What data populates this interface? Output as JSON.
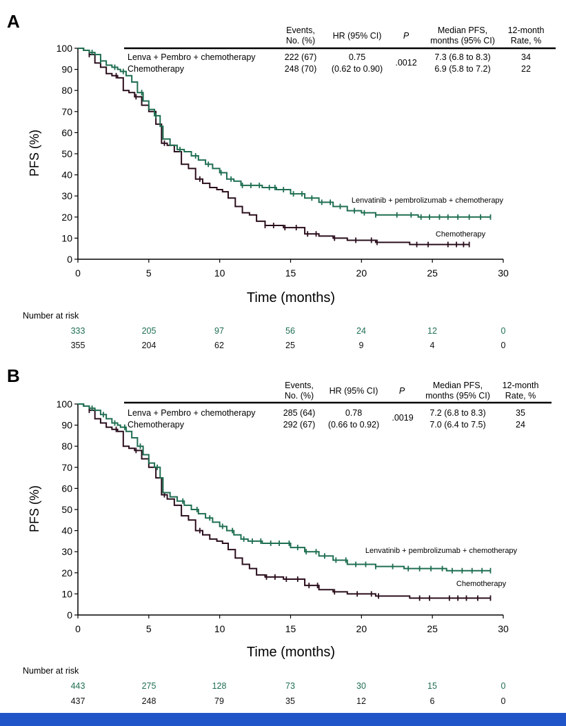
{
  "figure": {
    "accent_color": "#1f55c8",
    "colors": {
      "lenva": "#1e6e50",
      "chemo": "#2a0d1c"
    }
  },
  "chart_data": [
    {
      "panel": "A",
      "type": "line",
      "subtype": "kaplan-meier",
      "xlabel": "Time (months)",
      "ylabel": "PFS (%)",
      "xlim": [
        0,
        30
      ],
      "ylim": [
        0,
        100
      ],
      "xticks": [
        0,
        5,
        10,
        15,
        20,
        25,
        30
      ],
      "yticks": [
        0,
        10,
        20,
        30,
        40,
        50,
        60,
        70,
        80,
        90,
        100
      ],
      "table": {
        "headers": [
          {
            "lines": [
              "Events,",
              "No. (%)"
            ]
          },
          {
            "lines": [
              "HR (95% CI)"
            ]
          },
          {
            "lines": [
              "P"
            ],
            "italic": true
          },
          {
            "lines": [
              "Median  PFS,",
              "months (95% CI)"
            ]
          },
          {
            "lines": [
              "12-month",
              "Rate, %"
            ]
          }
        ],
        "rows": [
          {
            "name": "Lenva + Pembro + chemotherapy",
            "events": "222 (67)",
            "hr": "0.75",
            "p": ".0012",
            "median": "7.3 (6.8 to 8.3)",
            "rate": "34"
          },
          {
            "name": "Chemotherapy",
            "events": "248 (70)",
            "hr": "(0.62 to 0.90)",
            "p": "",
            "median": "6.9 (5.8 to 7.2)",
            "rate": "22"
          }
        ]
      },
      "series": [
        {
          "name": "Lenvatinib + pembrolizumab + chemotherapy",
          "label": "Lenvatinib + pembrolizumab + chemotherapy",
          "color": "#1e6e50",
          "x": [
            0,
            0.4,
            0.8,
            1.2,
            1.6,
            2,
            2.4,
            2.8,
            3,
            3.4,
            3.8,
            4.2,
            4.6,
            5,
            5.4,
            5.8,
            6,
            6.5,
            7,
            7.5,
            8,
            8.5,
            9,
            9.5,
            10,
            10.5,
            11,
            11.5,
            12,
            13,
            14,
            15,
            16,
            17,
            18,
            19,
            20,
            21,
            22,
            23,
            24,
            25,
            26,
            27,
            28,
            29.1
          ],
          "y": [
            100,
            99,
            98,
            97,
            94,
            92,
            91,
            90,
            89,
            87,
            84,
            79,
            75,
            71,
            68,
            63,
            57,
            54,
            52,
            51,
            49,
            47,
            45,
            43,
            41,
            38,
            37,
            35,
            35,
            34,
            33,
            31,
            29,
            27,
            25,
            23,
            22,
            21,
            21,
            21,
            20,
            20,
            20,
            20,
            20,
            20
          ],
          "censor_x": [
            1,
            1.6,
            2.6,
            3.2,
            4.5,
            5.5,
            7.2,
            8.3,
            9.2,
            10.1,
            10.8,
            11.6,
            12.2,
            12.8,
            13.5,
            13.9,
            14.5,
            15.2,
            15.8,
            16.5,
            17.2,
            17.8,
            18.5,
            19.5,
            20.2,
            21,
            22.5,
            23.5,
            24.2,
            24.8,
            25.5,
            26.1,
            26.8,
            27.6,
            28.4,
            29.1
          ]
        },
        {
          "name": "Chemotherapy",
          "label": "Chemotherapy",
          "color": "#2a0d1c",
          "x": [
            0,
            0.4,
            0.8,
            1.2,
            1.6,
            2,
            2.4,
            2.8,
            3.2,
            3.6,
            4,
            4.5,
            5,
            5.5,
            5.9,
            6.3,
            6.8,
            7.3,
            7.8,
            8.3,
            8.8,
            9.3,
            9.8,
            10.2,
            10.6,
            11.1,
            11.6,
            12.1,
            12.6,
            13.2,
            14.5,
            16,
            17,
            18,
            19,
            20,
            21,
            22,
            23,
            23.4,
            24.5,
            25.5,
            26.5,
            27.6
          ],
          "y": [
            100,
            99,
            97,
            93,
            91,
            88,
            87,
            86,
            80,
            79,
            77,
            73,
            70,
            64,
            55,
            54,
            51,
            45,
            43,
            38,
            36,
            34,
            33,
            32,
            29,
            25,
            22,
            21,
            18,
            16,
            15,
            12,
            11,
            10,
            9,
            9,
            8,
            8,
            8,
            7,
            7,
            7,
            7,
            7
          ],
          "censor_x": [
            0.8,
            2.7,
            4.1,
            6.1,
            8.6,
            13.2,
            13.8,
            14.6,
            15.4,
            16.2,
            16.8,
            18.1,
            19.6,
            20.7,
            21.1,
            23.9,
            24.7,
            26.1,
            26.7,
            27.2,
            27.6
          ]
        }
      ],
      "risk_table": {
        "title": "Number at risk",
        "times": [
          0,
          5,
          10,
          15,
          20,
          25,
          30
        ],
        "rows": [
          {
            "series": "Lenvatinib + pembrolizumab + chemotherapy",
            "values": [
              "333",
              "205",
              "97",
              "56",
              "24",
              "12",
              "0"
            ]
          },
          {
            "series": "Chemotherapy",
            "values": [
              "355",
              "204",
              "62",
              "25",
              "9",
              "4",
              "0"
            ]
          }
        ]
      }
    },
    {
      "panel": "B",
      "type": "line",
      "subtype": "kaplan-meier",
      "xlabel": "Time (months)",
      "ylabel": "PFS (%)",
      "xlim": [
        0,
        30
      ],
      "ylim": [
        0,
        100
      ],
      "xticks": [
        0,
        5,
        10,
        15,
        20,
        25,
        30
      ],
      "yticks": [
        0,
        10,
        20,
        30,
        40,
        50,
        60,
        70,
        80,
        90,
        100
      ],
      "table": {
        "headers": [
          {
            "lines": [
              "Events,",
              "No. (%)"
            ]
          },
          {
            "lines": [
              "HR (95% CI)"
            ]
          },
          {
            "lines": [
              "P"
            ],
            "italic": true
          },
          {
            "lines": [
              "Median  PFS,",
              "months (95% CI)"
            ]
          },
          {
            "lines": [
              "12-month",
              "Rate, %"
            ]
          }
        ],
        "rows": [
          {
            "name": "Lenva + Pembro + chemotherapy",
            "events": "285 (64)",
            "hr": "0.78",
            "p": ".0019",
            "median": "7.2 (6.8 to 8.3)",
            "rate": "35"
          },
          {
            "name": "Chemotherapy",
            "events": "292 (67)",
            "hr": "(0.66 to 0.92)",
            "p": "",
            "median": "7.0 (6.4 to 7.5)",
            "rate": "24"
          }
        ]
      },
      "series": [
        {
          "name": "Lenvatinib + pembrolizumab + chemotherapy",
          "label": "Lenvatinib + pembrolizumab + chemotherapy",
          "color": "#1e6e50",
          "x": [
            0,
            0.4,
            0.8,
            1.2,
            1.6,
            2,
            2.4,
            2.8,
            3,
            3.4,
            3.8,
            4.2,
            4.6,
            5,
            5.4,
            5.8,
            6,
            6.5,
            7,
            7.5,
            8,
            8.5,
            9,
            9.5,
            10,
            10.5,
            11,
            11.5,
            12,
            13,
            14,
            15,
            16,
            17,
            18,
            19,
            20,
            21,
            22,
            23,
            24,
            25,
            26,
            27,
            28,
            29.1
          ],
          "y": [
            100,
            99,
            98,
            97,
            95,
            93,
            91,
            90,
            89,
            87,
            84,
            80,
            76,
            72,
            70,
            65,
            58,
            56,
            54,
            52,
            50,
            48,
            46,
            44,
            42,
            40,
            38,
            36,
            35,
            34,
            34,
            32,
            30,
            28,
            26,
            24,
            24,
            23,
            23,
            22,
            22,
            22,
            21,
            21,
            21,
            21
          ],
          "censor_x": [
            1,
            1.8,
            2.6,
            3.3,
            4.4,
            5.6,
            7.4,
            8.4,
            9.3,
            10.2,
            10.9,
            11.7,
            12.3,
            12.9,
            13.6,
            14.2,
            14.9,
            15.5,
            16.1,
            16.8,
            17.4,
            18.2,
            18.9,
            19.6,
            20.3,
            21,
            22.2,
            23.3,
            24.1,
            24.9,
            25.7,
            26.4,
            27.1,
            27.8,
            28.5,
            29.1
          ]
        },
        {
          "name": "Chemotherapy",
          "label": "Chemotherapy",
          "color": "#2a0d1c",
          "x": [
            0,
            0.4,
            0.8,
            1.2,
            1.6,
            2,
            2.4,
            2.8,
            3.2,
            3.6,
            4,
            4.5,
            5,
            5.5,
            5.9,
            6.3,
            6.8,
            7.3,
            7.8,
            8.3,
            8.8,
            9.3,
            9.8,
            10.2,
            10.6,
            11.1,
            11.6,
            12.1,
            12.6,
            13.2,
            14.5,
            16,
            17,
            18,
            19,
            20,
            21,
            22,
            23,
            23.4,
            24.5,
            25.5,
            26.5,
            27.5,
            29.1
          ],
          "y": [
            100,
            99,
            97,
            93,
            91,
            89,
            88,
            87,
            80,
            79,
            78,
            74,
            70,
            65,
            57,
            55,
            52,
            47,
            45,
            40,
            38,
            36,
            35,
            34,
            31,
            27,
            24,
            22,
            19,
            18,
            17,
            14,
            12,
            11,
            10,
            10,
            9,
            9,
            9,
            8,
            8,
            8,
            8,
            8,
            8
          ],
          "censor_x": [
            0.8,
            2.7,
            4.1,
            6.1,
            8.6,
            13.3,
            13.9,
            14.7,
            15.5,
            16.3,
            16.9,
            18.1,
            19.7,
            20.7,
            21.2,
            24.1,
            24.8,
            26.2,
            26.8,
            27.4,
            28.2,
            29.1
          ]
        }
      ],
      "risk_table": {
        "title": "Number at risk",
        "times": [
          0,
          5,
          10,
          15,
          20,
          25,
          30
        ],
        "rows": [
          {
            "series": "Lenvatinib + pembrolizumab + chemotherapy",
            "values": [
              "443",
              "275",
              "128",
              "73",
              "30",
              "15",
              "0"
            ]
          },
          {
            "series": "Chemotherapy",
            "values": [
              "437",
              "248",
              "79",
              "35",
              "12",
              "6",
              "0"
            ]
          }
        ]
      }
    }
  ]
}
